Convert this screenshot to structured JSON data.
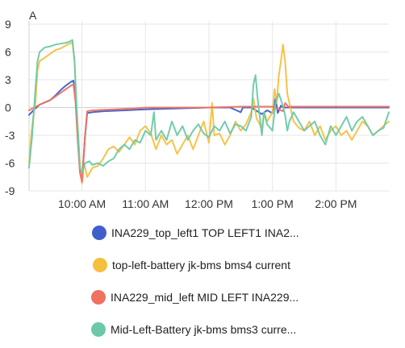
{
  "chart_data": {
    "type": "line",
    "ylabel": "A",
    "ylim": [
      -9,
      9
    ],
    "yticks": [
      9,
      6,
      3,
      0,
      -3,
      -6,
      -9
    ],
    "xlim": [
      "09:10",
      "14:50"
    ],
    "xticks": [
      {
        "t": "10:00",
        "label": "10:00 AM"
      },
      {
        "t": "11:00",
        "label": "11:00 AM"
      },
      {
        "t": "12:00",
        "label": "12:00 PM"
      },
      {
        "t": "13:00",
        "label": "1:00 PM"
      },
      {
        "t": "14:00",
        "label": "2:00 PM"
      }
    ],
    "grid": true,
    "legend_position": "bottom",
    "series": [
      {
        "name": "INA229_top_left1 TOP LEFT1 INA2...",
        "color": "#3F5FCB",
        "points": [
          [
            "09:10",
            -0.8
          ],
          [
            "09:15",
            -0.2
          ],
          [
            "09:20",
            0.3
          ],
          [
            "09:30",
            0.8
          ],
          [
            "09:35",
            1.3
          ],
          [
            "09:40",
            1.9
          ],
          [
            "09:45",
            2.4
          ],
          [
            "09:50",
            2.8
          ],
          [
            "09:52",
            2.9
          ],
          [
            "09:54",
            1.0
          ],
          [
            "09:56",
            -3.0
          ],
          [
            "09:58",
            -6.5
          ],
          [
            "10:00",
            -8.0
          ],
          [
            "10:03",
            -3.0
          ],
          [
            "10:05",
            -0.6
          ],
          [
            "10:10",
            -0.5
          ],
          [
            "10:20",
            -0.4
          ],
          [
            "10:40",
            -0.3
          ],
          [
            "11:00",
            -0.2
          ],
          [
            "11:30",
            -0.1
          ],
          [
            "12:00",
            0.0
          ],
          [
            "12:20",
            0.0
          ],
          [
            "12:30",
            -0.5
          ],
          [
            "12:32",
            0.0
          ],
          [
            "12:40",
            0.0
          ],
          [
            "12:50",
            -0.7
          ],
          [
            "12:55",
            -0.3
          ],
          [
            "13:00",
            -0.6
          ],
          [
            "13:03",
            1.0
          ],
          [
            "13:05",
            -0.6
          ],
          [
            "13:08",
            0.2
          ],
          [
            "13:10",
            0.0
          ],
          [
            "13:30",
            0.0
          ],
          [
            "14:00",
            0.0
          ],
          [
            "14:30",
            0.0
          ],
          [
            "14:50",
            0.0
          ]
        ]
      },
      {
        "name": "top-left-battery jk-bms bms4 current",
        "color": "#F4C03E",
        "points": [
          [
            "09:10",
            -6.0
          ],
          [
            "09:12",
            -3.0
          ],
          [
            "09:14",
            -1.0
          ],
          [
            "09:16",
            0.5
          ],
          [
            "09:18",
            4.0
          ],
          [
            "09:20",
            5.0
          ],
          [
            "09:25",
            5.4
          ],
          [
            "09:30",
            5.8
          ],
          [
            "09:35",
            6.2
          ],
          [
            "09:40",
            6.4
          ],
          [
            "09:45",
            6.7
          ],
          [
            "09:48",
            6.9
          ],
          [
            "09:51",
            7.0
          ],
          [
            "09:53",
            5.0
          ],
          [
            "09:55",
            0.0
          ],
          [
            "09:58",
            -6.0
          ],
          [
            "10:00",
            -8.2
          ],
          [
            "10:02",
            -6.0
          ],
          [
            "10:05",
            -7.5
          ],
          [
            "10:10",
            -6.5
          ],
          [
            "10:15",
            -6.3
          ],
          [
            "10:20",
            -5.5
          ],
          [
            "10:25",
            -4.5
          ],
          [
            "10:30",
            -4.2
          ],
          [
            "10:35",
            -4.8
          ],
          [
            "10:40",
            -4.0
          ],
          [
            "10:45",
            -3.2
          ],
          [
            "10:50",
            -4.0
          ],
          [
            "10:55",
            -2.5
          ],
          [
            "11:00",
            -2.0
          ],
          [
            "11:05",
            -2.8
          ],
          [
            "11:10",
            -4.5
          ],
          [
            "11:15",
            -3.0
          ],
          [
            "11:20",
            -4.0
          ],
          [
            "11:25",
            -3.5
          ],
          [
            "11:30",
            -5.0
          ],
          [
            "11:35",
            -4.0
          ],
          [
            "11:40",
            -3.0
          ],
          [
            "11:45",
            -4.5
          ],
          [
            "11:50",
            -3.0
          ],
          [
            "11:55",
            -1.5
          ],
          [
            "12:00",
            -3.8
          ],
          [
            "12:03",
            0.5
          ],
          [
            "12:05",
            -3.0
          ],
          [
            "12:10",
            -2.8
          ],
          [
            "12:15",
            -4.0
          ],
          [
            "12:20",
            -3.0
          ],
          [
            "12:25",
            -1.5
          ],
          [
            "12:30",
            -2.5
          ],
          [
            "12:35",
            -1.8
          ],
          [
            "12:40",
            -0.5
          ],
          [
            "12:42",
            1.0
          ],
          [
            "12:45",
            -1.2
          ],
          [
            "12:48",
            -1.8
          ],
          [
            "12:50",
            -2.5
          ],
          [
            "12:52",
            -0.5
          ],
          [
            "12:55",
            -1.5
          ],
          [
            "13:00",
            -0.5
          ],
          [
            "13:02",
            2.0
          ],
          [
            "13:04",
            0.5
          ],
          [
            "13:06",
            3.5
          ],
          [
            "13:08",
            5.0
          ],
          [
            "13:10",
            6.8
          ],
          [
            "13:12",
            5.0
          ],
          [
            "13:14",
            1.5
          ],
          [
            "13:16",
            0.5
          ],
          [
            "13:20",
            -1.5
          ],
          [
            "13:25",
            -2.2
          ],
          [
            "13:30",
            -2.5
          ],
          [
            "13:35",
            -1.5
          ],
          [
            "13:40",
            -3.0
          ],
          [
            "13:45",
            -2.0
          ],
          [
            "13:50",
            -3.5
          ],
          [
            "13:55",
            -2.5
          ],
          [
            "14:00",
            -2.0
          ],
          [
            "14:05",
            -3.0
          ],
          [
            "14:10",
            -2.5
          ],
          [
            "14:15",
            -3.5
          ],
          [
            "14:20",
            -2.5
          ],
          [
            "14:25",
            -1.5
          ],
          [
            "14:30",
            -2.0
          ],
          [
            "14:35",
            -3.0
          ],
          [
            "14:40",
            -2.5
          ],
          [
            "14:45",
            -2.0
          ],
          [
            "14:50",
            -1.5
          ]
        ]
      },
      {
        "name": "INA229_mid_left MID LEFT INA229...",
        "color": "#F07160",
        "points": [
          [
            "09:10",
            -0.3
          ],
          [
            "09:15",
            0.0
          ],
          [
            "09:20",
            0.3
          ],
          [
            "09:30",
            0.8
          ],
          [
            "09:35",
            1.2
          ],
          [
            "09:40",
            1.6
          ],
          [
            "09:45",
            2.0
          ],
          [
            "09:50",
            2.4
          ],
          [
            "09:52",
            2.5
          ],
          [
            "09:54",
            0.5
          ],
          [
            "09:56",
            -3.5
          ],
          [
            "09:58",
            -7.0
          ],
          [
            "10:00",
            -8.0
          ],
          [
            "10:03",
            -3.0
          ],
          [
            "10:05",
            -0.4
          ],
          [
            "10:10",
            -0.3
          ],
          [
            "10:30",
            -0.2
          ],
          [
            "10:50",
            -0.1
          ],
          [
            "11:00",
            0.0
          ],
          [
            "11:30",
            0.0
          ],
          [
            "12:00",
            0.0
          ],
          [
            "12:30",
            0.1
          ],
          [
            "13:00",
            0.1
          ],
          [
            "13:10",
            -0.4
          ],
          [
            "13:12",
            0.5
          ],
          [
            "13:15",
            0.1
          ],
          [
            "13:30",
            0.1
          ],
          [
            "14:00",
            0.1
          ],
          [
            "14:30",
            0.1
          ],
          [
            "14:50",
            0.1
          ]
        ]
      },
      {
        "name": "Mid-Left-Battery jk-bms bms3 curre...",
        "color": "#6CC9A8",
        "points": [
          [
            "09:10",
            -6.5
          ],
          [
            "09:13",
            -3.0
          ],
          [
            "09:16",
            2.0
          ],
          [
            "09:18",
            5.0
          ],
          [
            "09:20",
            6.0
          ],
          [
            "09:25",
            6.5
          ],
          [
            "09:30",
            6.6
          ],
          [
            "09:35",
            6.8
          ],
          [
            "09:40",
            6.9
          ],
          [
            "09:45",
            7.0
          ],
          [
            "09:48",
            7.1
          ],
          [
            "09:51",
            7.3
          ],
          [
            "09:53",
            5.0
          ],
          [
            "09:55",
            0.0
          ],
          [
            "09:58",
            -6.5
          ],
          [
            "10:00",
            -7.0
          ],
          [
            "10:03",
            -6.0
          ],
          [
            "10:07",
            -5.8
          ],
          [
            "10:10",
            -6.2
          ],
          [
            "10:15",
            -6.0
          ],
          [
            "10:20",
            -6.3
          ],
          [
            "10:25",
            -5.8
          ],
          [
            "10:30",
            -5.5
          ],
          [
            "10:35",
            -4.5
          ],
          [
            "10:40",
            -4.0
          ],
          [
            "10:45",
            -4.5
          ],
          [
            "10:50",
            -3.5
          ],
          [
            "10:55",
            -3.8
          ],
          [
            "11:00",
            -2.5
          ],
          [
            "11:05",
            -3.0
          ],
          [
            "11:08",
            -0.5
          ],
          [
            "11:10",
            -3.5
          ],
          [
            "11:15",
            -2.5
          ],
          [
            "11:20",
            -3.5
          ],
          [
            "11:25",
            -1.5
          ],
          [
            "11:30",
            -3.0
          ],
          [
            "11:35",
            -2.0
          ],
          [
            "11:40",
            -3.5
          ],
          [
            "11:45",
            -2.5
          ],
          [
            "11:50",
            -1.8
          ],
          [
            "11:55",
            -2.8
          ],
          [
            "12:00",
            -3.2
          ],
          [
            "12:05",
            -2.0
          ],
          [
            "12:10",
            -2.5
          ],
          [
            "12:15",
            -1.5
          ],
          [
            "12:20",
            -2.8
          ],
          [
            "12:25",
            -1.8
          ],
          [
            "12:30",
            -2.0
          ],
          [
            "12:35",
            -2.5
          ],
          [
            "12:40",
            -1.0
          ],
          [
            "12:42",
            2.5
          ],
          [
            "12:44",
            3.5
          ],
          [
            "12:46",
            1.0
          ],
          [
            "12:48",
            -1.0
          ],
          [
            "12:50",
            -3.0
          ],
          [
            "12:52",
            -0.5
          ],
          [
            "12:55",
            -1.8
          ],
          [
            "13:00",
            -2.5
          ],
          [
            "13:03",
            0.5
          ],
          [
            "13:06",
            1.5
          ],
          [
            "13:09",
            0.5
          ],
          [
            "13:12",
            -0.8
          ],
          [
            "13:14",
            -2.5
          ],
          [
            "13:16",
            -1.5
          ],
          [
            "13:20",
            -0.5
          ],
          [
            "13:25",
            -1.5
          ],
          [
            "13:30",
            -2.5
          ],
          [
            "13:35",
            -2.0
          ],
          [
            "13:40",
            -1.5
          ],
          [
            "13:45",
            -3.0
          ],
          [
            "13:50",
            -4.0
          ],
          [
            "13:55",
            -2.0
          ],
          [
            "14:00",
            -3.0
          ],
          [
            "14:05",
            -2.0
          ],
          [
            "14:10",
            -1.0
          ],
          [
            "14:15",
            -2.5
          ],
          [
            "14:20",
            -1.5
          ],
          [
            "14:25",
            -1.0
          ],
          [
            "14:30",
            -2.0
          ],
          [
            "14:35",
            -3.0
          ],
          [
            "14:40",
            -2.5
          ],
          [
            "14:45",
            -2.2
          ],
          [
            "14:50",
            -0.5
          ]
        ]
      }
    ]
  }
}
